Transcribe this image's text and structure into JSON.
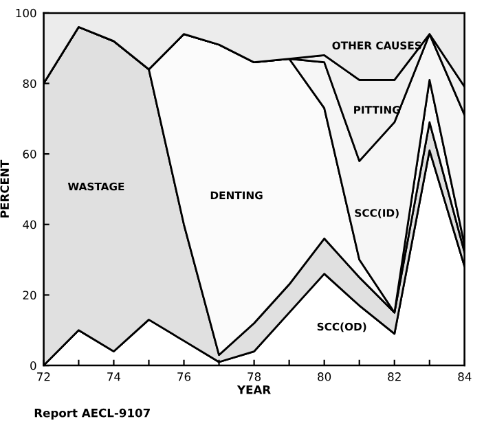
{
  "chart_data": {
    "type": "area",
    "stacked": true,
    "xlabel": "YEAR",
    "ylabel": "PERCENT",
    "x": [
      72,
      73,
      74,
      75,
      76,
      77,
      78,
      79,
      80,
      81,
      82,
      83,
      84
    ],
    "series": [
      {
        "name": "SCC(OD)",
        "color": "#ffffff",
        "values": [
          0,
          10,
          4,
          13,
          7,
          1,
          4,
          15,
          26,
          17,
          9,
          61,
          28
        ]
      },
      {
        "name": "WASTAGE",
        "color": "#e0e0e0",
        "values": [
          80,
          86,
          88,
          71,
          33,
          2,
          8,
          8,
          10,
          8,
          6,
          8,
          4
        ]
      },
      {
        "name": "DENTING",
        "color": "#fbfbfb",
        "values": [
          0,
          0,
          0,
          0,
          54,
          88,
          74,
          64,
          37,
          5,
          0,
          12,
          2
        ]
      },
      {
        "name": "SCC(ID)",
        "color": "#f6f6f6",
        "values": [
          0,
          0,
          0,
          0,
          0,
          0,
          0,
          0,
          13,
          28,
          54,
          13,
          37
        ]
      },
      {
        "name": "PITTING",
        "color": "#f1f1f1",
        "values": [
          0,
          0,
          0,
          0,
          0,
          0,
          0,
          0,
          2,
          23,
          12,
          0,
          8
        ]
      },
      {
        "name": "OTHER CAUSES",
        "color": "#ececec",
        "values": [
          20,
          4,
          8,
          16,
          6,
          9,
          14,
          13,
          12,
          19,
          19,
          6,
          21
        ]
      }
    ],
    "xlim": [
      72,
      84
    ],
    "xticks": [
      72,
      {
        "value": 73,
        "label": null
      },
      74,
      {
        "value": 75,
        "label": null
      },
      76,
      {
        "value": 77,
        "label": null
      },
      78,
      {
        "value": 79,
        "label": null
      },
      80,
      {
        "value": 81,
        "label": null
      },
      82,
      {
        "value": 83,
        "label": null
      },
      84
    ],
    "ylim": [
      0,
      100
    ],
    "yticks": [
      0,
      20,
      40,
      60,
      80,
      100
    ],
    "grid": false,
    "legend": false,
    "annotations": [
      "Report AECL-9107"
    ]
  }
}
